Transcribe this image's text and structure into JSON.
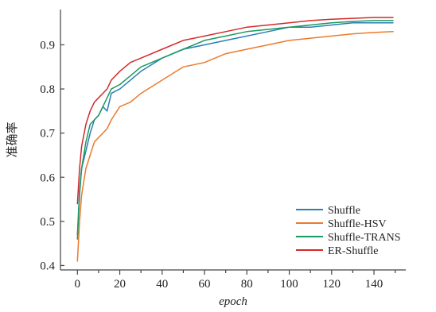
{
  "chart_data": {
    "type": "line",
    "title": "",
    "xlabel": "epoch",
    "ylabel": "准确率",
    "xlim": [
      -8,
      155
    ],
    "ylim": [
      0.39,
      0.98
    ],
    "xticks": [
      0,
      20,
      40,
      60,
      80,
      100,
      120,
      140
    ],
    "yticks": [
      0.4,
      0.5,
      0.6,
      0.7,
      0.8,
      0.9
    ],
    "grid": false,
    "legend_position": "bottom-right",
    "series": [
      {
        "name": "Shuffle",
        "color": "#2a7fb4",
        "x": [
          0,
          1,
          2,
          4,
          6,
          8,
          10,
          12,
          14,
          16,
          20,
          25,
          30,
          40,
          50,
          60,
          70,
          80,
          90,
          100,
          110,
          120,
          130,
          140,
          149
        ],
        "y": [
          0.47,
          0.57,
          0.62,
          0.66,
          0.7,
          0.73,
          0.74,
          0.76,
          0.75,
          0.79,
          0.8,
          0.82,
          0.84,
          0.87,
          0.89,
          0.9,
          0.91,
          0.92,
          0.93,
          0.94,
          0.94,
          0.945,
          0.95,
          0.95,
          0.95
        ]
      },
      {
        "name": "Shuffle-HSV",
        "color": "#ec7a2c",
        "x": [
          0,
          1,
          2,
          4,
          6,
          8,
          10,
          12,
          14,
          16,
          20,
          25,
          30,
          40,
          50,
          60,
          70,
          80,
          90,
          100,
          110,
          120,
          130,
          140,
          149
        ],
        "y": [
          0.41,
          0.5,
          0.56,
          0.62,
          0.65,
          0.68,
          0.69,
          0.7,
          0.71,
          0.73,
          0.76,
          0.77,
          0.79,
          0.82,
          0.85,
          0.86,
          0.88,
          0.89,
          0.9,
          0.91,
          0.915,
          0.92,
          0.925,
          0.928,
          0.93
        ]
      },
      {
        "name": "Shuffle-TRANS",
        "color": "#1a9960",
        "x": [
          0,
          1,
          2,
          4,
          6,
          8,
          10,
          12,
          14,
          16,
          20,
          25,
          30,
          40,
          50,
          60,
          70,
          80,
          90,
          100,
          110,
          120,
          130,
          140,
          149
        ],
        "y": [
          0.46,
          0.56,
          0.62,
          0.68,
          0.72,
          0.73,
          0.74,
          0.76,
          0.78,
          0.8,
          0.81,
          0.83,
          0.85,
          0.87,
          0.89,
          0.91,
          0.92,
          0.93,
          0.935,
          0.94,
          0.945,
          0.95,
          0.953,
          0.955,
          0.955
        ]
      },
      {
        "name": "ER-Shuffle",
        "color": "#d42a2a",
        "x": [
          0,
          1,
          2,
          4,
          6,
          8,
          10,
          12,
          14,
          16,
          20,
          25,
          30,
          40,
          50,
          60,
          70,
          80,
          90,
          100,
          110,
          120,
          130,
          140,
          149
        ],
        "y": [
          0.54,
          0.62,
          0.67,
          0.72,
          0.75,
          0.77,
          0.78,
          0.79,
          0.8,
          0.82,
          0.84,
          0.86,
          0.87,
          0.89,
          0.91,
          0.92,
          0.93,
          0.94,
          0.945,
          0.95,
          0.955,
          0.958,
          0.96,
          0.962,
          0.962
        ]
      }
    ]
  }
}
